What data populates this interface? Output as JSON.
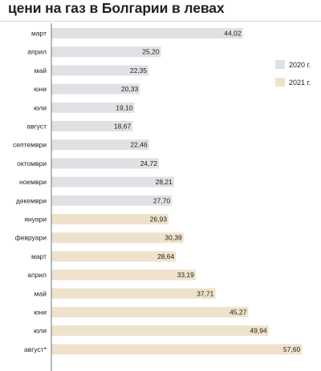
{
  "title": "цени на газ в Болгарии в левах",
  "chart_data": {
    "type": "bar",
    "orientation": "horizontal",
    "categories": [
      "март",
      "април",
      "май",
      "юни",
      "юли",
      "август",
      "септември",
      "октомври",
      "ноември",
      "декември",
      "януари",
      "февруари",
      "март",
      "април",
      "май",
      "юни",
      "юли",
      "август*"
    ],
    "values": [
      44.02,
      25.2,
      22.35,
      20.33,
      19.1,
      18.67,
      22.46,
      24.72,
      28.21,
      27.7,
      26.93,
      30.39,
      28.64,
      33.19,
      37.71,
      45.27,
      49.94,
      57.6
    ],
    "value_labels": [
      "44,02",
      "25,20",
      "22,35",
      "20,33",
      "19,10",
      "18,67",
      "22,46",
      "24,72",
      "28,21",
      "27,70",
      "26,93",
      "30,39",
      "28,64",
      "33,19",
      "37,71",
      "45,27",
      "49,94",
      "57,60"
    ],
    "series_assignment": [
      "2020 г.",
      "2020 г.",
      "2020 г.",
      "2020 г.",
      "2020 г.",
      "2020 г.",
      "2020 г.",
      "2020 г.",
      "2020 г.",
      "2020 г.",
      "2021 г.",
      "2021 г.",
      "2021 г.",
      "2021 г.",
      "2021 г.",
      "2021 г.",
      "2021 г.",
      "2021 г."
    ],
    "series": [
      {
        "name": "2020 г.",
        "color": "#e0e1e4"
      },
      {
        "name": "2021 г.",
        "color": "#efe2cc"
      }
    ],
    "xlim": [
      0,
      60
    ],
    "grid": false,
    "legend_position": "right"
  }
}
